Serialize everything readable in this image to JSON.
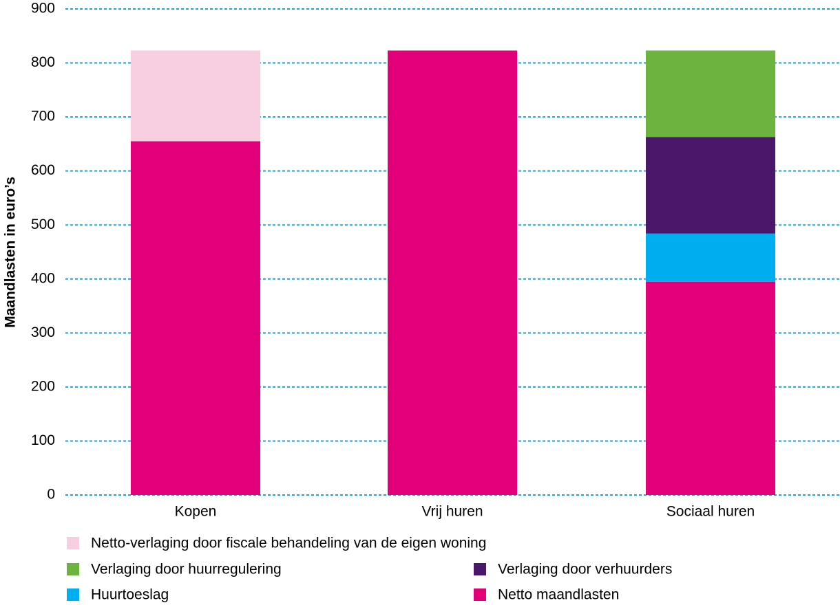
{
  "chart_data": {
    "type": "bar",
    "stacked": true,
    "y_label": "Maandlasten in euro’s",
    "categories": [
      "Kopen",
      "Vrij huren",
      "Sociaal huren"
    ],
    "series": [
      {
        "name": "Netto maandlasten",
        "color": "#e2007a",
        "values": [
          655,
          823,
          395
        ]
      },
      {
        "name": "Huurtoeslag",
        "color": "#00aeef",
        "values": [
          null,
          null,
          89
        ]
      },
      {
        "name": "Verlaging door verhuurders",
        "color": "#4a176b",
        "values": [
          null,
          null,
          179
        ]
      },
      {
        "name": "Verlaging door huurregulering",
        "color": "#6db33f",
        "values": [
          null,
          null,
          160
        ]
      },
      {
        "name": "Netto-verlaging door fiscale behandeling van de eigen woning",
        "color": "#f7cfe0",
        "values": [
          168,
          null,
          null
        ]
      }
    ],
    "ylim": [
      0,
      900
    ],
    "yticks": [
      0,
      100,
      200,
      300,
      400,
      500,
      600,
      700,
      800,
      900
    ],
    "grid": true
  }
}
